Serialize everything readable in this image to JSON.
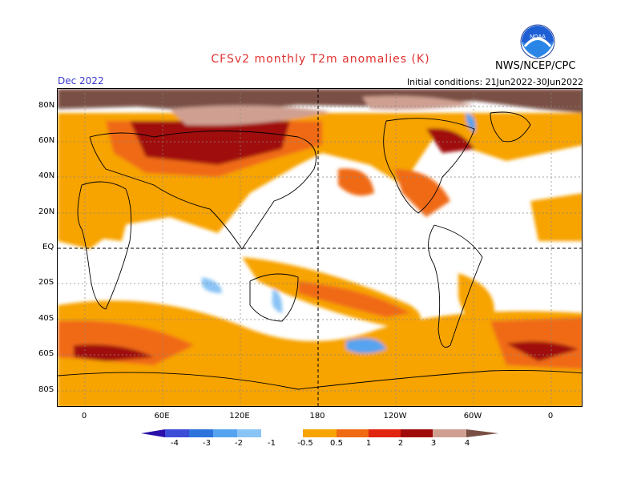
{
  "header": {
    "title": "CFSv2 monthly T2m anomalies (K)",
    "month": "Dec 2022",
    "initial_conditions": "Initial conditions: 21Jun2022-30Jun2022",
    "agency": "NWS/NCEP/CPC",
    "logo_text": "NOAA"
  },
  "colors": {
    "title": "#e03030",
    "month": "#3a3ad0",
    "legend": [
      "#2a0fa8",
      "#3c4bd8",
      "#2c73dc",
      "#56a3ef",
      "#8ac4f5",
      "#ffffff",
      "#f7a300",
      "#f06a14",
      "#e0240e",
      "#a00a0a",
      "#cfa092",
      "#7a5045"
    ]
  },
  "legend": {
    "labels": [
      "-4",
      "-3",
      "-2",
      "-1",
      "-0.5",
      "0.5",
      "1",
      "2",
      "3",
      "4"
    ]
  },
  "axes": {
    "lat_labels": [
      "80N",
      "60N",
      "40N",
      "20N",
      "EQ",
      "20S",
      "40S",
      "60S",
      "80S"
    ],
    "lon_labels": [
      "0",
      "60E",
      "120E",
      "180",
      "120W",
      "60W",
      "0"
    ]
  }
}
